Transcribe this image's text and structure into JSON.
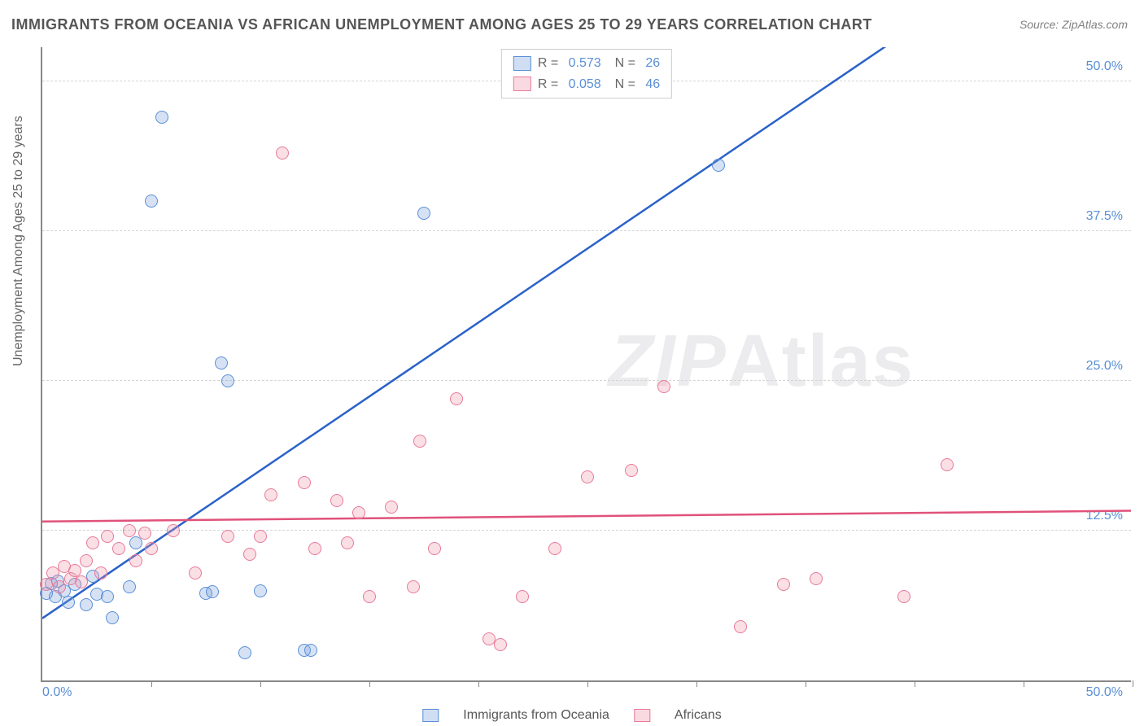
{
  "chart": {
    "type": "scatter",
    "title": "IMMIGRANTS FROM OCEANIA VS AFRICAN UNEMPLOYMENT AMONG AGES 25 TO 29 YEARS CORRELATION CHART",
    "source": "Source: ZipAtlas.com",
    "ylabel": "Unemployment Among Ages 25 to 29 years",
    "watermark": "ZIPAtlas",
    "background_color": "#ffffff",
    "grid_color": "#d5d5d5",
    "axis_color": "#888888",
    "tick_color": "#5a8fd6",
    "xlim": [
      0,
      50
    ],
    "ylim": [
      0,
      53
    ],
    "xtick_labels": {
      "left": "0.0%",
      "right": "50.0%"
    },
    "ytick_positions": [
      12.5,
      25.0,
      37.5,
      50.0
    ],
    "ytick_labels": [
      "12.5%",
      "25.0%",
      "37.5%",
      "50.0%"
    ],
    "xtick_marks": [
      5,
      10,
      15,
      20,
      25,
      30,
      35,
      40,
      45,
      50
    ],
    "series": [
      {
        "name": "Immigrants from Oceania",
        "color_fill": "rgba(120,160,220,0.3)",
        "color_stroke": "#5a8fd6",
        "marker": "circle",
        "marker_size": 16,
        "R": "0.573",
        "N": "26",
        "trend": {
          "y_at_x0": 5.2,
          "y_at_x50": 67.0,
          "line_color": "#2a62c9",
          "line_width": 2.5
        },
        "points": [
          [
            0.2,
            7.3
          ],
          [
            0.4,
            8.1
          ],
          [
            0.6,
            7.0
          ],
          [
            0.7,
            8.3
          ],
          [
            1.0,
            7.5
          ],
          [
            1.2,
            6.5
          ],
          [
            1.5,
            8.0
          ],
          [
            2.0,
            6.3
          ],
          [
            2.3,
            8.7
          ],
          [
            2.5,
            7.2
          ],
          [
            3.0,
            7.0
          ],
          [
            3.2,
            5.2
          ],
          [
            4.0,
            7.8
          ],
          [
            4.3,
            11.5
          ],
          [
            5.0,
            40.0
          ],
          [
            5.5,
            47.0
          ],
          [
            7.5,
            7.3
          ],
          [
            7.8,
            7.4
          ],
          [
            8.2,
            26.5
          ],
          [
            8.5,
            25.0
          ],
          [
            9.3,
            2.3
          ],
          [
            10.0,
            7.5
          ],
          [
            12.0,
            2.5
          ],
          [
            12.3,
            2.5
          ],
          [
            17.5,
            39.0
          ],
          [
            31.0,
            43.0
          ]
        ]
      },
      {
        "name": "Africans",
        "color_fill": "rgba(240,150,170,0.3)",
        "color_stroke": "#e87a9a",
        "marker": "circle",
        "marker_size": 16,
        "R": "0.058",
        "N": "46",
        "trend": {
          "y_at_x0": 13.3,
          "y_at_x50": 14.2,
          "line_color": "#e0527a",
          "line_width": 2.5
        },
        "points": [
          [
            0.2,
            8.0
          ],
          [
            0.5,
            9.0
          ],
          [
            0.8,
            7.8
          ],
          [
            1.0,
            9.5
          ],
          [
            1.3,
            8.5
          ],
          [
            1.5,
            9.2
          ],
          [
            1.8,
            8.2
          ],
          [
            2.0,
            10.0
          ],
          [
            2.3,
            11.5
          ],
          [
            2.7,
            9.0
          ],
          [
            3.0,
            12.0
          ],
          [
            3.5,
            11.0
          ],
          [
            4.0,
            12.5
          ],
          [
            4.3,
            10.0
          ],
          [
            4.7,
            12.3
          ],
          [
            5.0,
            11.0
          ],
          [
            6.0,
            12.5
          ],
          [
            7.0,
            9.0
          ],
          [
            8.5,
            12.0
          ],
          [
            9.5,
            10.5
          ],
          [
            10.0,
            12.0
          ],
          [
            10.5,
            15.5
          ],
          [
            11.0,
            44.0
          ],
          [
            12.0,
            16.5
          ],
          [
            12.5,
            11.0
          ],
          [
            13.5,
            15.0
          ],
          [
            14.0,
            11.5
          ],
          [
            14.5,
            14.0
          ],
          [
            15.0,
            7.0
          ],
          [
            16.0,
            14.5
          ],
          [
            17.0,
            7.8
          ],
          [
            17.3,
            20.0
          ],
          [
            18.0,
            11.0
          ],
          [
            19.0,
            23.5
          ],
          [
            20.5,
            3.5
          ],
          [
            21.0,
            3.0
          ],
          [
            22.0,
            7.0
          ],
          [
            23.5,
            11.0
          ],
          [
            25.0,
            17.0
          ],
          [
            27.0,
            17.5
          ],
          [
            28.5,
            24.5
          ],
          [
            32.0,
            4.5
          ],
          [
            34.0,
            8.0
          ],
          [
            35.5,
            8.5
          ],
          [
            39.5,
            7.0
          ],
          [
            41.5,
            18.0
          ]
        ]
      }
    ],
    "bottom_legend": [
      {
        "swatch": "blue",
        "label": "Immigrants from Oceania"
      },
      {
        "swatch": "pink",
        "label": "Africans"
      }
    ]
  }
}
